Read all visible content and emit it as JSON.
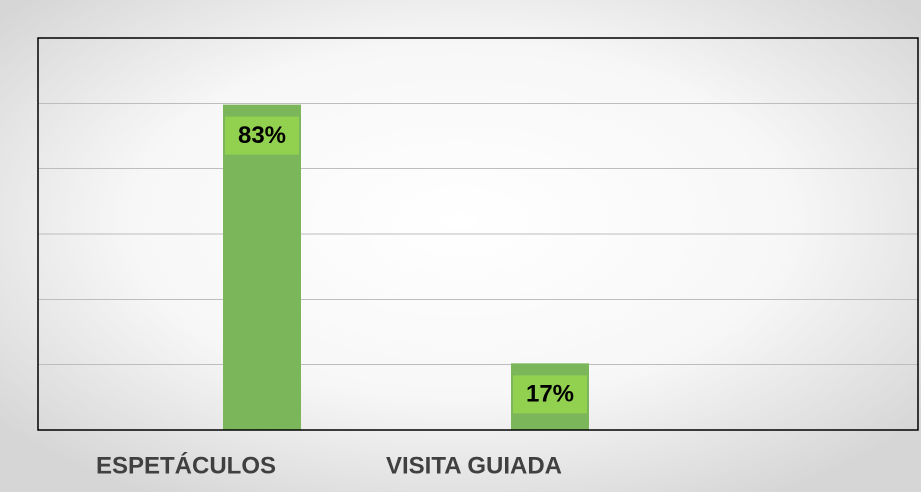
{
  "chart_data": {
    "type": "bar",
    "categories": [
      "ESPETÁCULOS",
      "VISITA GUIADA"
    ],
    "values": [
      83,
      17
    ],
    "value_labels": [
      "83%",
      "17%"
    ],
    "color": "#7cb65a",
    "label_color": "#92d050",
    "ylim": [
      0,
      100
    ],
    "yticks": [
      0,
      16.7,
      33.3,
      50,
      66.7,
      83.3
    ],
    "grid": true
  }
}
